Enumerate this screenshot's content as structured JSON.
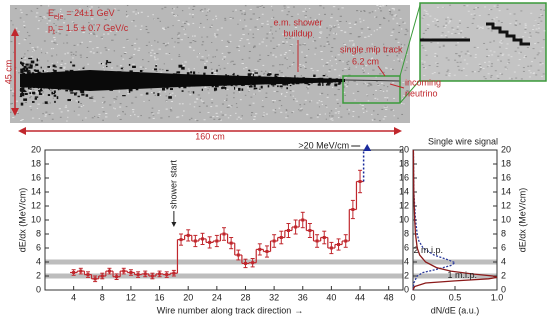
{
  "image": {
    "energy": {
      "symbol": "E",
      "subscript": "ele",
      "text": "= 24±1 GeV"
    },
    "momentum": {
      "symbol": "p",
      "subscript": "t",
      "text": "= 1.5 ± 0.7 GeV/c"
    },
    "shower": [
      "e.m. shower",
      "buildup"
    ],
    "track": "single mip track",
    "track_length": "6.2 cm",
    "neutrino": [
      "incoming",
      "neutrino"
    ],
    "height": "45 cm",
    "width": "160 cm"
  },
  "chart_data": [
    {
      "type": "errorbar",
      "x_label": "Wire number along track direction",
      "y_label": "dE/dx (MeV/cm)",
      "color": "#c0272d",
      "x": [
        4,
        5,
        6,
        7,
        8,
        9,
        10,
        11,
        12,
        13,
        14,
        15,
        16,
        17,
        18,
        19,
        20,
        21,
        22,
        23,
        24,
        25,
        26,
        27,
        28,
        29,
        30,
        31,
        32,
        33,
        34,
        35,
        36,
        37,
        38,
        39,
        40,
        41,
        42,
        43,
        44
      ],
      "values": [
        2.5,
        2.7,
        2.2,
        1.6,
        2.0,
        2.7,
        1.9,
        2.7,
        2.5,
        2.2,
        2.3,
        2.0,
        2.3,
        2.2,
        2.4,
        7.2,
        7.8,
        7.0,
        7.3,
        6.8,
        7.0,
        8.0,
        6.7,
        5.0,
        3.8,
        3.9,
        5.8,
        5.5,
        7.0,
        7.5,
        8.5,
        9.0,
        10.0,
        8.5,
        7.0,
        7.5,
        6.0,
        6.5,
        7.0,
        11.5,
        15.5
      ],
      "errors": [
        0.4,
        0.4,
        0.4,
        0.4,
        0.4,
        0.4,
        0.4,
        0.4,
        0.4,
        0.4,
        0.4,
        0.4,
        0.4,
        0.4,
        0.4,
        0.8,
        0.8,
        0.8,
        0.8,
        0.8,
        0.8,
        0.9,
        0.8,
        0.7,
        0.6,
        0.6,
        0.8,
        0.8,
        0.9,
        0.9,
        1.0,
        1.0,
        1.1,
        1.0,
        0.9,
        0.9,
        0.8,
        0.8,
        0.9,
        1.3,
        1.6
      ],
      "xlim": [
        0,
        50
      ],
      "ylim": [
        0,
        20
      ],
      "xticks": [
        4,
        8,
        12,
        16,
        20,
        24,
        28,
        32,
        36,
        40,
        44,
        48
      ],
      "yticks": [
        0,
        2,
        4,
        6,
        8,
        10,
        12,
        14,
        16,
        18,
        20
      ],
      "reference_lines": [
        2,
        4
      ],
      "annotations": [
        {
          "text": "shower start",
          "x": 18,
          "y": 9
        }
      ],
      "overflow": {
        "text": ">20 MeV/cm",
        "x": 45
      }
    },
    {
      "type": "line",
      "title": "Single wire signal",
      "x_label": "dN/dE (a.u.)",
      "y_label": "dE/dx (MeV/cm)",
      "xlim": [
        0,
        1
      ],
      "ylim": [
        0,
        20
      ],
      "xticks": [
        0,
        0.5,
        {
          "value": 1,
          "label": "1.0"
        }
      ],
      "yticks": [
        0,
        2,
        4,
        6,
        8,
        10,
        12,
        14,
        16,
        18,
        20
      ],
      "reference_lines": [
        2,
        4
      ],
      "series": [
        {
          "name": "2 m.i.p.",
          "color": "#2b3a9c",
          "dashed": true,
          "y": [
            0,
            1,
            2,
            2.5,
            3,
            3.5,
            3.9,
            4.3,
            5,
            6,
            7,
            8,
            10,
            12,
            14,
            20
          ],
          "values": [
            0,
            0.01,
            0.05,
            0.12,
            0.3,
            0.45,
            0.5,
            0.42,
            0.25,
            0.12,
            0.07,
            0.05,
            0.03,
            0.02,
            0.01,
            0.005
          ]
        },
        {
          "name": "1 m.i.p.",
          "color": "#8b1a1a",
          "dashed": false,
          "y": [
            0,
            0.5,
            1,
            1.3,
            1.6,
            1.8,
            2.0,
            2.3,
            2.7,
            3.2,
            4,
            5,
            6,
            8,
            10,
            14,
            20
          ],
          "values": [
            0,
            0.02,
            0.15,
            0.5,
            0.9,
            1.0,
            0.95,
            0.7,
            0.45,
            0.28,
            0.15,
            0.08,
            0.05,
            0.03,
            0.02,
            0.01,
            0.005
          ]
        }
      ]
    }
  ]
}
